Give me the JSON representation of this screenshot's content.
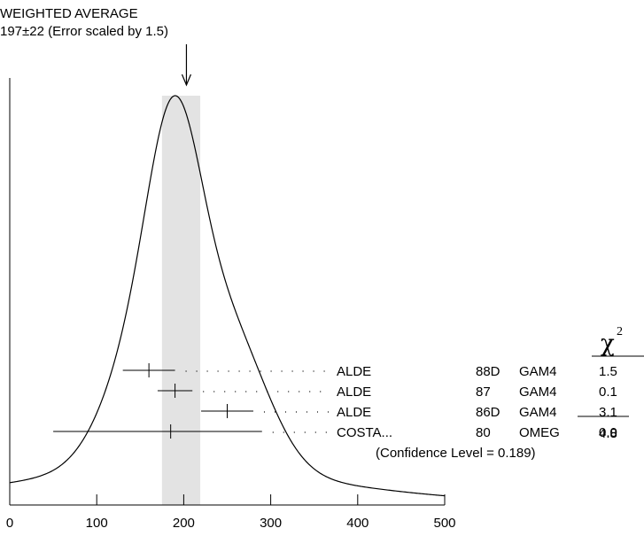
{
  "chart_data": {
    "type": "ideogram",
    "title_line1": "WEIGHTED AVERAGE",
    "title_line2": "197±22 (Error scaled by 1.5)",
    "weighted_average": 197,
    "average_error": 22,
    "xlim": [
      0,
      500
    ],
    "x_ticks": [
      0,
      100,
      200,
      300,
      400,
      500
    ],
    "measurements": [
      {
        "value": 160,
        "error_low": 30,
        "error_high": 30,
        "author": "ALDE",
        "year": "88D",
        "tech": "GAM4",
        "chi2": "1.5"
      },
      {
        "value": 190,
        "error_low": 20,
        "error_high": 20,
        "author": "ALDE",
        "year": "87",
        "tech": "GAM4",
        "chi2": "0.1"
      },
      {
        "value": 250,
        "error_low": 30,
        "error_high": 30,
        "author": "ALDE",
        "year": "86D",
        "tech": "GAM4",
        "chi2": "3.1"
      },
      {
        "value": 185,
        "error_low": 135,
        "error_high": 105,
        "author": "COSTA...",
        "year": "80",
        "tech": "OMEG",
        "chi2": "0.0"
      }
    ],
    "chi2_header": "χ",
    "chi2_superscript": "2",
    "chi2_total": "4.8",
    "confidence_level": "(Confidence Level = 0.189)"
  }
}
